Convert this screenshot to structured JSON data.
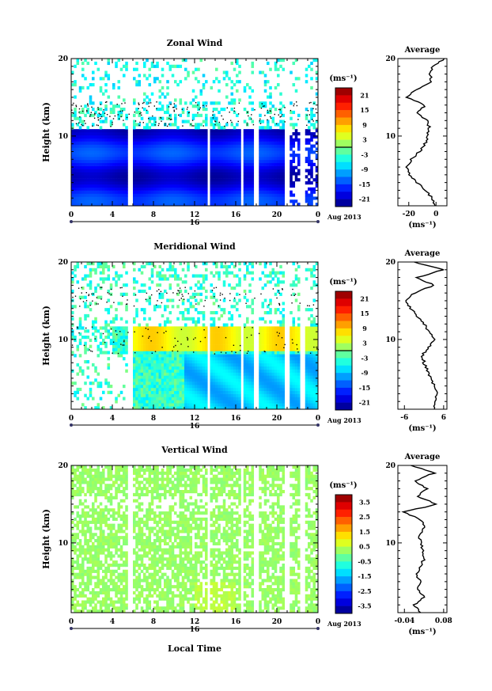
{
  "month_label": "Aug 2013",
  "day_label": "16",
  "xlabel": "Local Time",
  "ylabel": "Height (km)",
  "unit": "(ms⁻¹)",
  "average_title": "Average",
  "chart_data": [
    {
      "type": "heatmap",
      "title": "Zonal Wind",
      "x_ticks": [
        "0",
        "4",
        "8",
        "12",
        "16",
        "20",
        "0"
      ],
      "xlim": [
        0,
        24
      ],
      "y_ticks": [
        "10",
        "20"
      ],
      "ylim": [
        1,
        20
      ],
      "colorbar_ticks": [
        "21",
        "15",
        "9",
        "3",
        "-3",
        "-9",
        "-15",
        "-21"
      ],
      "colorbar_range": [
        -24,
        24
      ],
      "data_gaps_hours": [
        [
          5.6,
          6.0
        ],
        [
          13.2,
          13.6
        ],
        [
          16.4,
          16.8
        ],
        [
          17.8,
          18.2
        ],
        [
          20.8,
          21.2
        ],
        [
          22.3,
          22.7
        ]
      ],
      "profile": {
        "xlim": [
          -28,
          8
        ],
        "x_ticks": [
          "-20",
          "0"
        ],
        "heights": [
          1,
          2,
          3,
          4,
          5,
          6,
          7,
          8,
          9,
          10,
          11,
          12,
          13,
          14,
          15,
          16,
          17,
          18,
          19,
          20
        ],
        "values": [
          -1,
          -3,
          -8,
          -14,
          -20,
          -21,
          -18,
          -12,
          -8,
          -6,
          -5,
          -6,
          -14,
          -8,
          -22,
          -14,
          -4,
          -4,
          -2,
          6
        ]
      }
    },
    {
      "type": "heatmap",
      "title": "Meridional Wind",
      "x_ticks": [
        "0",
        "4",
        "8",
        "12",
        "16",
        "20",
        "0"
      ],
      "xlim": [
        0,
        24
      ],
      "y_ticks": [
        "10",
        "20"
      ],
      "ylim": [
        1,
        20
      ],
      "colorbar_ticks": [
        "21",
        "15",
        "9",
        "3",
        "-3",
        "-9",
        "-15",
        "-21"
      ],
      "colorbar_range": [
        -24,
        24
      ],
      "data_gaps_hours": [
        [
          5.6,
          6.0
        ],
        [
          13.2,
          13.6
        ],
        [
          16.4,
          16.8
        ],
        [
          17.8,
          18.2
        ],
        [
          20.8,
          21.2
        ],
        [
          22.3,
          22.7
        ]
      ],
      "profile": {
        "xlim": [
          -8,
          7
        ],
        "x_ticks": [
          "-6",
          "6"
        ],
        "heights": [
          1,
          2,
          3,
          4,
          5,
          6,
          7,
          8,
          9,
          10,
          11,
          12,
          13,
          14,
          15,
          16,
          17,
          18,
          19,
          20
        ],
        "values": [
          3,
          3.5,
          4,
          3,
          2,
          1,
          0,
          -0.5,
          1.5,
          3.5,
          1.5,
          0,
          -2,
          -4,
          -6,
          -3,
          3,
          -2,
          6,
          -3
        ]
      }
    },
    {
      "type": "heatmap",
      "title": "Vertical Wind",
      "x_ticks": [
        "0",
        "4",
        "8",
        "12",
        "16",
        "20",
        "0"
      ],
      "xlim": [
        0,
        24
      ],
      "y_ticks": [
        "10",
        "20"
      ],
      "ylim": [
        1,
        20
      ],
      "colorbar_ticks": [
        "3.5",
        "2.5",
        "1.5",
        "0.5",
        "-0.5",
        "-1.5",
        "-2.5",
        "-3.5"
      ],
      "colorbar_range": [
        -4,
        4
      ],
      "data_gaps_hours": [
        [
          5.6,
          6.0
        ],
        [
          13.2,
          13.6
        ],
        [
          16.4,
          16.8
        ],
        [
          17.8,
          18.2
        ],
        [
          20.8,
          21.2
        ],
        [
          22.3,
          22.7
        ]
      ],
      "profile": {
        "xlim": [
          -0.06,
          0.09
        ],
        "x_ticks": [
          "-0.04",
          "0.08"
        ],
        "heights": [
          1,
          2,
          3,
          4,
          5,
          6,
          7,
          8,
          9,
          10,
          11,
          12,
          13,
          14,
          15,
          16,
          17,
          18,
          19,
          20
        ],
        "values": [
          0.01,
          -0.01,
          0.02,
          0.0,
          0.01,
          -0.005,
          0.01,
          0.02,
          0.015,
          0.01,
          0.005,
          0.02,
          0.01,
          -0.04,
          0.06,
          0.0,
          0.03,
          -0.01,
          0.05,
          -0.02
        ]
      }
    }
  ]
}
